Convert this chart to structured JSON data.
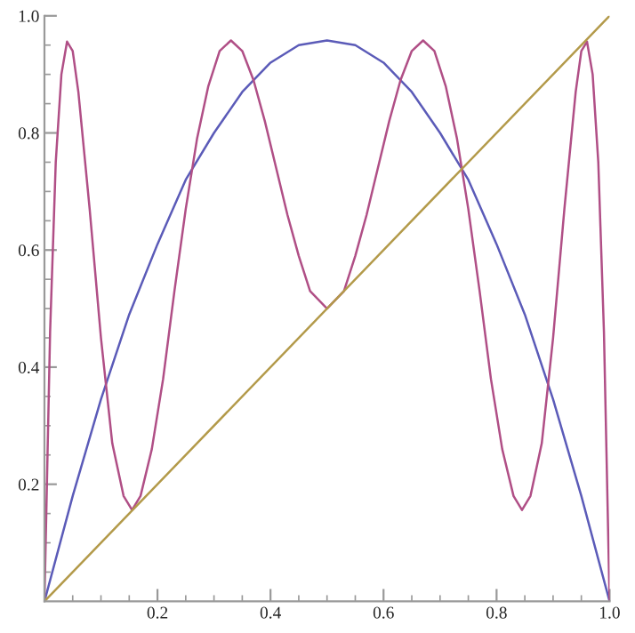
{
  "chart_data": {
    "type": "line",
    "series": [
      {
        "color": "#5b5bb8",
        "x": [
          0,
          0.05,
          0.1,
          0.15,
          0.2,
          0.25,
          0.3,
          0.35,
          0.4,
          0.45,
          0.5,
          0.55,
          0.6,
          0.65,
          0.7,
          0.75,
          0.8,
          0.85,
          0.9,
          0.95,
          1.0
        ],
        "values": [
          0,
          0.18,
          0.345,
          0.49,
          0.61,
          0.72,
          0.8,
          0.87,
          0.92,
          0.95,
          0.958,
          0.95,
          0.92,
          0.87,
          0.8,
          0.72,
          0.61,
          0.49,
          0.345,
          0.18,
          0
        ]
      },
      {
        "color": "#b04f86",
        "x": [
          0,
          0.01,
          0.02,
          0.03,
          0.04,
          0.05,
          0.06,
          0.08,
          0.1,
          0.12,
          0.14,
          0.155,
          0.17,
          0.19,
          0.21,
          0.23,
          0.25,
          0.27,
          0.29,
          0.31,
          0.33,
          0.35,
          0.37,
          0.39,
          0.41,
          0.43,
          0.45,
          0.47,
          0.5,
          0.53,
          0.55,
          0.57,
          0.59,
          0.61,
          0.63,
          0.65,
          0.67,
          0.69,
          0.71,
          0.73,
          0.75,
          0.77,
          0.79,
          0.81,
          0.83,
          0.845,
          0.86,
          0.88,
          0.9,
          0.92,
          0.94,
          0.95,
          0.96,
          0.97,
          0.98,
          0.99,
          1.0
        ],
        "values": [
          0,
          0.46,
          0.75,
          0.9,
          0.956,
          0.94,
          0.87,
          0.67,
          0.45,
          0.27,
          0.18,
          0.156,
          0.18,
          0.26,
          0.38,
          0.53,
          0.67,
          0.79,
          0.88,
          0.94,
          0.958,
          0.94,
          0.89,
          0.82,
          0.74,
          0.66,
          0.59,
          0.53,
          0.5,
          0.53,
          0.59,
          0.66,
          0.74,
          0.82,
          0.89,
          0.94,
          0.958,
          0.94,
          0.88,
          0.79,
          0.67,
          0.53,
          0.38,
          0.26,
          0.18,
          0.156,
          0.18,
          0.27,
          0.45,
          0.67,
          0.87,
          0.94,
          0.956,
          0.9,
          0.75,
          0.46,
          0
        ]
      },
      {
        "color": "#b39a4a",
        "x": [
          0,
          1.0
        ],
        "values": [
          0,
          1.0
        ]
      }
    ],
    "xlim": [
      0,
      1.0
    ],
    "ylim": [
      0,
      1.0
    ],
    "xticks": [
      {
        "value": 0.05,
        "label": null
      },
      {
        "value": 0.1,
        "label": null
      },
      {
        "value": 0.15,
        "label": null
      },
      0.2,
      {
        "value": 0.25,
        "label": null
      },
      {
        "value": 0.3,
        "label": null
      },
      {
        "value": 0.35,
        "label": null
      },
      0.4,
      {
        "value": 0.45,
        "label": null
      },
      {
        "value": 0.5,
        "label": null
      },
      {
        "value": 0.55,
        "label": null
      },
      0.6,
      {
        "value": 0.65,
        "label": null
      },
      {
        "value": 0.7,
        "label": null
      },
      {
        "value": 0.75,
        "label": null
      },
      0.8,
      {
        "value": 0.85,
        "label": null
      },
      {
        "value": 0.9,
        "label": null
      },
      {
        "value": 0.95,
        "label": null
      },
      {
        "value": 1.0,
        "label": "1.0"
      }
    ],
    "yticks": [
      {
        "value": 0.05,
        "label": null
      },
      {
        "value": 0.1,
        "label": null
      },
      {
        "value": 0.15,
        "label": null
      },
      0.2,
      {
        "value": 0.25,
        "label": null
      },
      {
        "value": 0.3,
        "label": null
      },
      {
        "value": 0.35,
        "label": null
      },
      0.4,
      {
        "value": 0.45,
        "label": null
      },
      {
        "value": 0.5,
        "label": null
      },
      {
        "value": 0.55,
        "label": null
      },
      0.6,
      {
        "value": 0.65,
        "label": null
      },
      {
        "value": 0.7,
        "label": null
      },
      {
        "value": 0.75,
        "label": null
      },
      0.8,
      {
        "value": 0.85,
        "label": null
      },
      {
        "value": 0.9,
        "label": null
      },
      {
        "value": 0.95,
        "label": null
      },
      {
        "value": 1.0,
        "label": "1.0"
      }
    ]
  }
}
